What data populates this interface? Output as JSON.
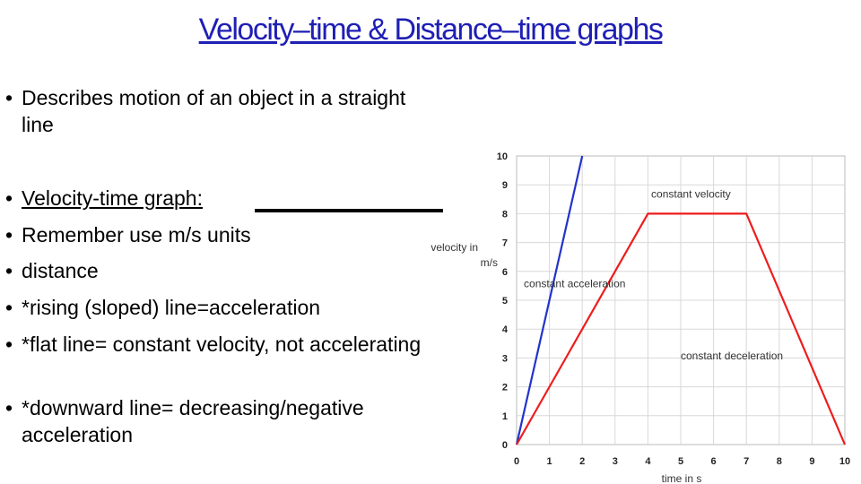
{
  "title": "Velocity–time & Distance–time graphs",
  "bullets": [
    {
      "text": "Describes motion of an object in a straight line"
    },
    {
      "text": "Velocity-time graph:"
    },
    {
      "text": "Remember use m/s units"
    },
    {
      "text": "distance"
    },
    {
      "text": "*rising (sloped) line=acceleration"
    },
    {
      "text": "*flat line= constant velocity, not accelerating"
    },
    {
      "text": "*downward line= decreasing/negative acceleration"
    }
  ],
  "chart_data": {
    "type": "line",
    "xlabel": "time in s",
    "ylabel": "velocity in m/s",
    "xlim": [
      0,
      10
    ],
    "ylim": [
      0,
      10
    ],
    "x_ticks": [
      "0",
      "1",
      "2",
      "3",
      "4",
      "5",
      "6",
      "7",
      "8",
      "9",
      "10"
    ],
    "y_ticks": [
      "0",
      "1",
      "2",
      "3",
      "4",
      "5",
      "6",
      "7",
      "8",
      "9",
      "10"
    ],
    "grid": true,
    "series": [
      {
        "color": "#2233cc",
        "points": [
          [
            0,
            0
          ],
          [
            2,
            10
          ]
        ]
      },
      {
        "color": "#ee1c1c",
        "points": [
          [
            0,
            0
          ],
          [
            4,
            8
          ],
          [
            7,
            8
          ],
          [
            10,
            0
          ]
        ]
      }
    ],
    "annotations": [
      {
        "text": "constant velocity",
        "x": 4.1,
        "y": 8.55
      },
      {
        "text": "constant acceleration",
        "x": 0.22,
        "y": 5.45
      },
      {
        "text": "constant deceleration",
        "x": 5,
        "y": 2.95
      }
    ]
  }
}
